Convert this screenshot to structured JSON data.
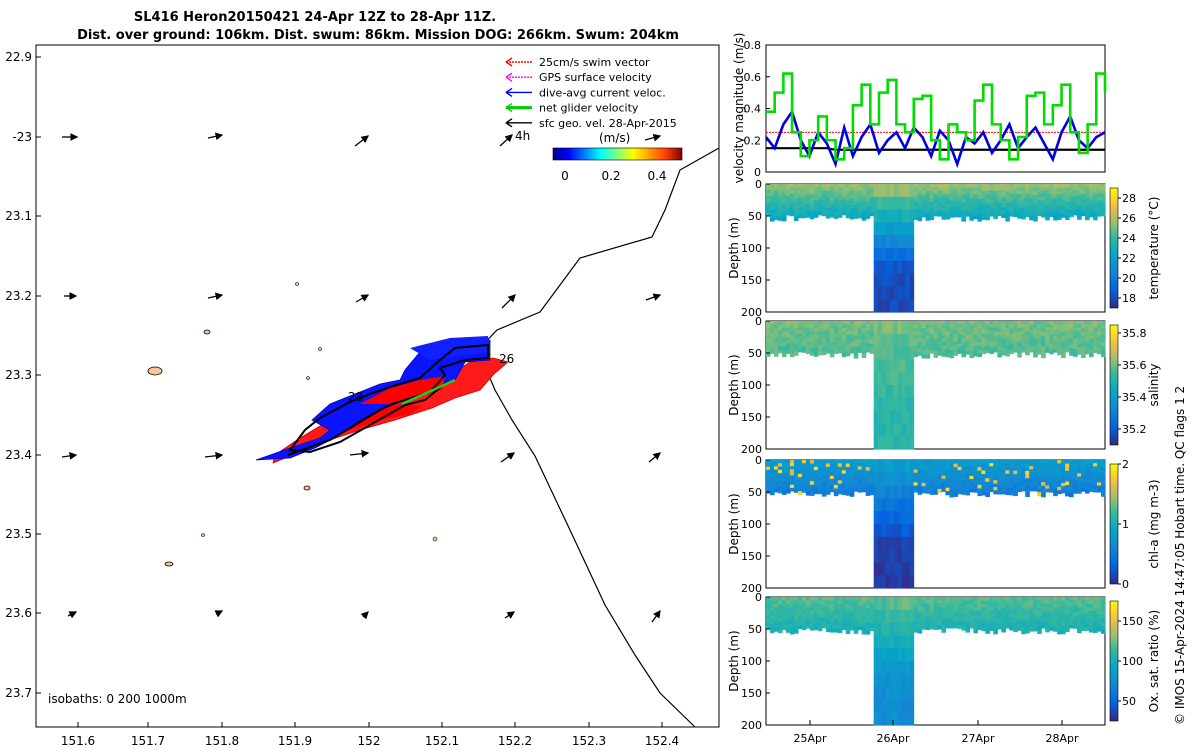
{
  "title": {
    "line1": "SL416 Heron20150421 24-Apr 12Z to 28-Apr 11Z.",
    "line2": "Dist. over ground: 106km. Dist. swum: 86km. Mission DOG: 266km. Swum: 204km"
  },
  "map": {
    "lon_ticks": [
      "151.6",
      "151.7",
      "151.8",
      "151.9",
      "152",
      "152.1",
      "152.2",
      "152.3",
      "152.4"
    ],
    "lat_ticks": [
      "22.9",
      "-23",
      "23.1",
      "23.2",
      "23.3",
      "23.4",
      "23.5",
      "23.6",
      "23.7"
    ],
    "isobaths_text": "isobaths: 0   200  1000m",
    "annotations": {
      "time_4h": "4h",
      "day_26": "26",
      "day_28": "28"
    },
    "legend": [
      {
        "label": "25cm/s swim vector",
        "color": "#ff0000"
      },
      {
        "label": "GPS surface velocity",
        "color": "#ff00ff"
      },
      {
        "label": "dive-avg current veloc.",
        "color": "#0000ff"
      },
      {
        "label": "net glider velocity",
        "color": "#00cc00"
      },
      {
        "label": "sfc geo. vel. 28-Apr-2015",
        "color": "#000000"
      }
    ],
    "colorbar": {
      "label": "(m/s)",
      "ticks": [
        "0",
        "0.2",
        "0.4"
      ]
    }
  },
  "chart_data": [
    {
      "type": "line",
      "title": "",
      "ylabel": "velocity magnitude (m/s)",
      "ylim": [
        0,
        0.8
      ],
      "yticks": [
        "0",
        "0.2",
        "0.4",
        "0.6",
        "0.8"
      ],
      "x": [
        0,
        0.1,
        0.2,
        0.3,
        0.4,
        0.5,
        0.6,
        0.7,
        0.8,
        0.9,
        1.0,
        1.1,
        1.2,
        1.3,
        1.4,
        1.5,
        1.6,
        1.7,
        1.8,
        1.9,
        2.0,
        2.1,
        2.2,
        2.3,
        2.4,
        2.5,
        2.6,
        2.7,
        2.8,
        2.9,
        3.0,
        3.1,
        3.2,
        3.3,
        3.4,
        3.5,
        3.6,
        3.7,
        3.8,
        3.9
      ],
      "series": [
        {
          "name": "net glider velocity",
          "color": "#00dd00",
          "values": [
            0.38,
            0.5,
            0.62,
            0.25,
            0.1,
            0.2,
            0.35,
            0.2,
            0.08,
            0.15,
            0.42,
            0.55,
            0.3,
            0.5,
            0.58,
            0.3,
            0.25,
            0.46,
            0.48,
            0.2,
            0.08,
            0.3,
            0.25,
            0.2,
            0.45,
            0.55,
            0.3,
            0.2,
            0.08,
            0.22,
            0.48,
            0.5,
            0.3,
            0.42,
            0.55,
            0.25,
            0.12,
            0.3,
            0.62,
            0.5
          ]
        },
        {
          "name": "dive-avg current veloc.",
          "color": "#0000dd",
          "values": [
            0.22,
            0.15,
            0.3,
            0.38,
            0.2,
            0.1,
            0.25,
            0.18,
            0.05,
            0.28,
            0.1,
            0.22,
            0.3,
            0.12,
            0.2,
            0.25,
            0.15,
            0.28,
            0.22,
            0.1,
            0.26,
            0.2,
            0.05,
            0.22,
            0.18,
            0.25,
            0.12,
            0.2,
            0.3,
            0.15,
            0.22,
            0.28,
            0.18,
            0.08,
            0.25,
            0.35,
            0.2,
            0.15,
            0.22,
            0.25
          ]
        },
        {
          "name": "25cm/s swim vector",
          "color": "#ff0000",
          "values": [
            0.25,
            0.25,
            0.25,
            0.25,
            0.25,
            0.25,
            0.25,
            0.25,
            0.25,
            0.25,
            0.25,
            0.25,
            0.25,
            0.25,
            0.25,
            0.25,
            0.25,
            0.25,
            0.25,
            0.25,
            0.25,
            0.25,
            0.25,
            0.25,
            0.25,
            0.25,
            0.25,
            0.25,
            0.25,
            0.25,
            0.25,
            0.25,
            0.25,
            0.25,
            0.25,
            0.25,
            0.25,
            0.25,
            0.25,
            0.25
          ]
        },
        {
          "name": "sfc geo. vel. 28-Apr-2015",
          "color": "#000000",
          "values": [
            0.15,
            0.15,
            0.15,
            0.15,
            0.15,
            0.15,
            0.15,
            0.15,
            0.14,
            0.14,
            0.14,
            0.14,
            0.14,
            0.14,
            0.14,
            0.14,
            0.14,
            0.14,
            0.14,
            0.14,
            0.14,
            0.14,
            0.14,
            0.14,
            0.14,
            0.14,
            0.14,
            0.14,
            0.14,
            0.14,
            0.14,
            0.14,
            0.14,
            0.14,
            0.14,
            0.14,
            0.14,
            0.14,
            0.14,
            0.14
          ]
        }
      ]
    },
    {
      "type": "heatmap",
      "ylabel": "Depth (m)",
      "ylim": [
        0,
        200
      ],
      "yticks": [
        "0",
        "50",
        "100",
        "150",
        "200"
      ],
      "colorbar_label": "temperature (°C)",
      "colorbar_ticks": [
        "18",
        "20",
        "22",
        "24",
        "26",
        "28"
      ],
      "clim": [
        17,
        29
      ],
      "surface_value": 25.5,
      "deep_value": 18,
      "colormap": "parula"
    },
    {
      "type": "heatmap",
      "ylabel": "Depth (m)",
      "ylim": [
        0,
        200
      ],
      "yticks": [
        "0",
        "50",
        "100",
        "150",
        "200"
      ],
      "colorbar_label": "salinity",
      "colorbar_ticks": [
        "35.2",
        "35.4",
        "35.6",
        "35.8"
      ],
      "clim": [
        35.1,
        35.85
      ],
      "surface_value": 35.6,
      "deep_value": 35.52,
      "colormap": "parula"
    },
    {
      "type": "heatmap",
      "ylabel": "Depth (m)",
      "ylim": [
        0,
        200
      ],
      "yticks": [
        "0",
        "50",
        "100",
        "150",
        "200"
      ],
      "colorbar_label": "chl-a (mg m-3)",
      "colorbar_ticks": [
        "0",
        "1",
        "2"
      ],
      "clim": [
        0,
        2
      ],
      "surface_value": 0.8,
      "deep_value": 0.1,
      "colormap": "parula"
    },
    {
      "type": "heatmap",
      "ylabel": "Depth (m)",
      "ylim": [
        0,
        200
      ],
      "yticks": [
        "0",
        "50",
        "100",
        "150",
        "200"
      ],
      "xticks": [
        "25Apr",
        "26Apr",
        "27Apr",
        "28Apr"
      ],
      "colorbar_label": "Ox. sat. ratio (%)",
      "colorbar_ticks": [
        "50",
        "100",
        "150"
      ],
      "clim": [
        25,
        175
      ],
      "surface_value": 120,
      "deep_value": 75,
      "colormap": "parula"
    }
  ],
  "sidebar_text": "© IMOS 15-Apr-2024 14:47:05 Hobart time. QC flags 1  2"
}
